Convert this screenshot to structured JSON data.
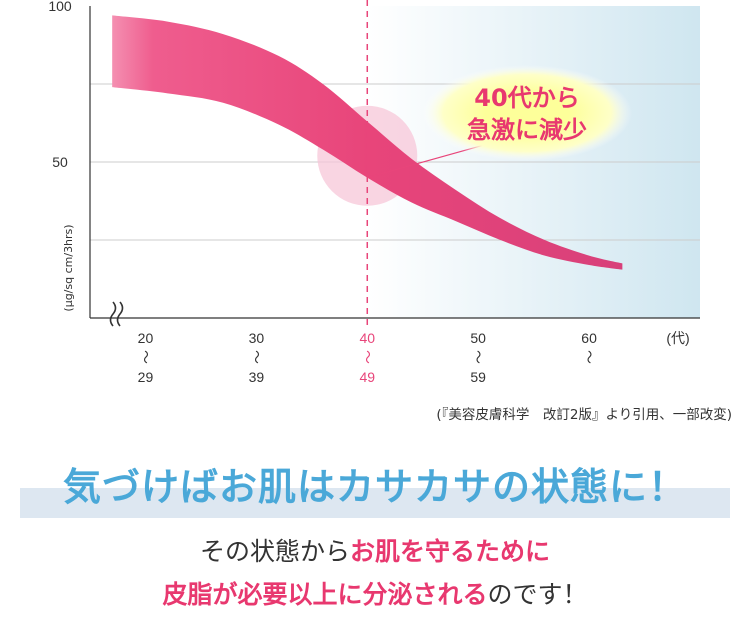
{
  "chart_data": {
    "type": "area",
    "title": "",
    "xlabel": "",
    "ylabel": "(μg/sq cm/3hrs)",
    "x_unit": "(代)",
    "ylim": [
      0,
      100
    ],
    "xlim": [
      15,
      70
    ],
    "y_ticks": [
      "100",
      "50"
    ],
    "x_ticks": [
      {
        "x": 20,
        "top": "20",
        "mid": "〜",
        "bottom": "29",
        "highlight": false
      },
      {
        "x": 30,
        "top": "30",
        "mid": "〜",
        "bottom": "39",
        "highlight": false
      },
      {
        "x": 40,
        "top": "40",
        "mid": "〜",
        "bottom": "49",
        "highlight": true
      },
      {
        "x": 50,
        "top": "50",
        "mid": "〜",
        "bottom": "59",
        "highlight": false
      },
      {
        "x": 60,
        "top": "60",
        "mid": "〜",
        "bottom": "",
        "highlight": false
      }
    ],
    "gridlines_y": [
      75,
      50,
      25
    ],
    "grid": true,
    "band": {
      "x": [
        17,
        22,
        27,
        32,
        36,
        40,
        44,
        48,
        52,
        56,
        60,
        63
      ],
      "upper": [
        97,
        95,
        91,
        84,
        75,
        63,
        51,
        41,
        32,
        25,
        20,
        17.5
      ],
      "lower": [
        74,
        72,
        69,
        62,
        54,
        45,
        37,
        31,
        25,
        20,
        17,
        15.5
      ]
    },
    "marker_x": 40,
    "shaded_from_x": 40,
    "annotation": {
      "lines": [
        "40代から",
        "急激に減少"
      ]
    }
  },
  "source_note": "(『美容皮膚科学　改訂2版』より引用、一部改変)",
  "headline": "気づけばお肌はカサカサの状態に！",
  "body": {
    "line1_plain": "その状態から",
    "line1_bold": "お肌を守るために",
    "line2_bold": "皮脂が必要以上に分泌される",
    "line2_plain": "のです！"
  },
  "colors": {
    "band": "#e8457a",
    "shade": "#cfe6f0",
    "accent": "#e8386f",
    "headline": "#4aa8d8"
  }
}
